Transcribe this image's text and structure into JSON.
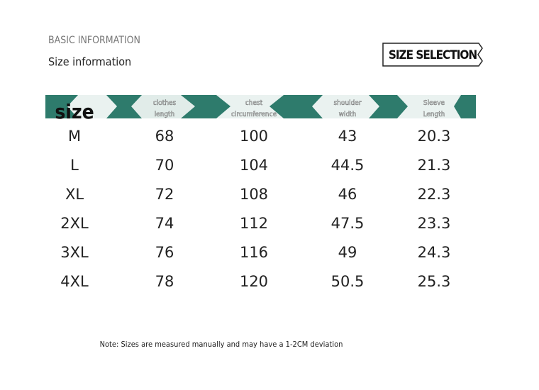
{
  "header": {
    "kicker": "BASIC INFORMATION",
    "title": "Size information",
    "badge": "SIZE SELECTION"
  },
  "table": {
    "columns": [
      [
        "size"
      ],
      [
        "clothes",
        "length"
      ],
      [
        "chest",
        "circumference"
      ],
      [
        "shoulder",
        "width"
      ],
      [
        "Sleeve",
        "Length"
      ]
    ],
    "rows": [
      [
        "M",
        "68",
        "100",
        "43",
        "20.3"
      ],
      [
        "L",
        "70",
        "104",
        "44.5",
        "21.3"
      ],
      [
        "XL",
        "72",
        "108",
        "46",
        "22.3"
      ],
      [
        "2XL",
        "74",
        "112",
        "47.5",
        "23.3"
      ],
      [
        "3XL",
        "76",
        "116",
        "49",
        "24.3"
      ],
      [
        "4XL",
        "78",
        "120",
        "50.5",
        "25.3"
      ]
    ]
  },
  "note": "Note: Sizes are measured manually and may have a 1-2CM deviation"
}
